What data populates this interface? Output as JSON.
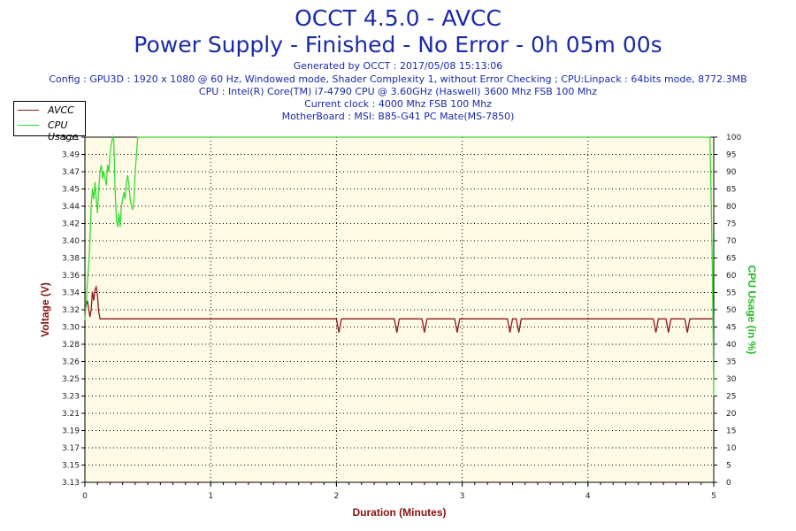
{
  "header": {
    "title": "OCCT 4.5.0 - AVCC",
    "subtitle": "Power Supply - Finished - No Error - 0h 05m 00s",
    "info_lines": [
      "Generated by OCCT : 2017/05/08 15:13:06",
      "Config : GPU3D : 1920 x 1080 @ 60 Hz, Windowed mode, Shader Complexity 1, without Error Checking ; CPU:Linpack : 64bits mode, 8772.3MB",
      "CPU : Intel(R) Core(TM) i7-4790 CPU @ 3.60GHz (Haswell) 3600 Mhz FSB 100 Mhz",
      "Current clock : 4000 Mhz FSB 100 Mhz",
      "MotherBoard : MSI: B85-G41 PC Mate(MS-7850)"
    ]
  },
  "legend": {
    "items": [
      {
        "label": "AVCC",
        "color": "#8b1a1a"
      },
      {
        "label": "CPU Usage",
        "color": "#33dd33"
      }
    ]
  },
  "colors": {
    "plot_bg": "#fffbe6",
    "grid": "#000000",
    "avcc": "#8b1a1a",
    "cpu": "#33dd33"
  },
  "chart_data": {
    "type": "line",
    "title": "OCCT 4.5.0 - AVCC",
    "xlabel": "Duration (Minutes)",
    "ylabel": "Voltage (V)",
    "y2label": "CPU Usage (in %)",
    "xlim": [
      0,
      5
    ],
    "ylim": [
      3.13,
      3.51
    ],
    "y2lim": [
      0,
      100
    ],
    "x_ticks": [
      "0",
      "1",
      "2",
      "3",
      "4",
      "5"
    ],
    "y_ticks": [
      "3.13",
      "3.15",
      "3.17",
      "3.19",
      "3.21",
      "3.23",
      "3.25",
      "3.26",
      "3.28",
      "3.30",
      "3.32",
      "3.34",
      "3.36",
      "3.38",
      "3.40",
      "3.42",
      "3.44",
      "3.45",
      "3.47",
      "3.49",
      "3.51"
    ],
    "y2_ticks": [
      "0",
      "5",
      "10",
      "15",
      "20",
      "25",
      "30",
      "35",
      "40",
      "45",
      "50",
      "55",
      "60",
      "65",
      "70",
      "75",
      "80",
      "85",
      "90",
      "95",
      "100"
    ],
    "grid": true,
    "legend_position": "top-left",
    "series": [
      {
        "name": "AVCC",
        "axis": "left",
        "points": [
          [
            0.0,
            3.32
          ],
          [
            0.02,
            3.33
          ],
          [
            0.04,
            3.312
          ],
          [
            0.05,
            3.32
          ],
          [
            0.06,
            3.34
          ],
          [
            0.07,
            3.33
          ],
          [
            0.08,
            3.342
          ],
          [
            0.09,
            3.345
          ],
          [
            0.1,
            3.336
          ],
          [
            0.11,
            3.318
          ],
          [
            0.12,
            3.31
          ],
          [
            2.0,
            3.31
          ],
          [
            2.02,
            3.295
          ],
          [
            2.04,
            3.31
          ],
          [
            2.46,
            3.31
          ],
          [
            2.48,
            3.295
          ],
          [
            2.5,
            3.31
          ],
          [
            2.68,
            3.31
          ],
          [
            2.7,
            3.295
          ],
          [
            2.72,
            3.31
          ],
          [
            2.94,
            3.31
          ],
          [
            2.96,
            3.295
          ],
          [
            2.98,
            3.31
          ],
          [
            3.36,
            3.31
          ],
          [
            3.38,
            3.295
          ],
          [
            3.4,
            3.31
          ],
          [
            3.43,
            3.31
          ],
          [
            3.45,
            3.295
          ],
          [
            3.47,
            3.31
          ],
          [
            4.52,
            3.31
          ],
          [
            4.54,
            3.295
          ],
          [
            4.56,
            3.31
          ],
          [
            4.62,
            3.31
          ],
          [
            4.64,
            3.295
          ],
          [
            4.66,
            3.31
          ],
          [
            4.77,
            3.31
          ],
          [
            4.79,
            3.295
          ],
          [
            4.81,
            3.31
          ],
          [
            5.0,
            3.31
          ]
        ]
      },
      {
        "name": "CPU Usage",
        "axis": "right",
        "points": [
          [
            0.0,
            47
          ],
          [
            0.01,
            52
          ],
          [
            0.02,
            58
          ],
          [
            0.03,
            63
          ],
          [
            0.04,
            70
          ],
          [
            0.05,
            80
          ],
          [
            0.06,
            85
          ],
          [
            0.07,
            82
          ],
          [
            0.08,
            87
          ],
          [
            0.09,
            82
          ],
          [
            0.1,
            78
          ],
          [
            0.11,
            85
          ],
          [
            0.12,
            90
          ],
          [
            0.13,
            92
          ],
          [
            0.14,
            88
          ],
          [
            0.15,
            90
          ],
          [
            0.16,
            88
          ],
          [
            0.17,
            86
          ],
          [
            0.18,
            92
          ],
          [
            0.19,
            90
          ],
          [
            0.2,
            95
          ],
          [
            0.21,
            98
          ],
          [
            0.22,
            100
          ],
          [
            0.23,
            99
          ],
          [
            0.24,
            85
          ],
          [
            0.25,
            76
          ],
          [
            0.26,
            74
          ],
          [
            0.27,
            78
          ],
          [
            0.28,
            74
          ],
          [
            0.29,
            80
          ],
          [
            0.3,
            82
          ],
          [
            0.31,
            84
          ],
          [
            0.32,
            82
          ],
          [
            0.33,
            87
          ],
          [
            0.34,
            89
          ],
          [
            0.35,
            86
          ],
          [
            0.36,
            82
          ],
          [
            0.37,
            80
          ],
          [
            0.38,
            79
          ],
          [
            0.39,
            82
          ],
          [
            0.4,
            90
          ],
          [
            0.41,
            95
          ],
          [
            0.42,
            100
          ],
          [
            4.97,
            100
          ],
          [
            4.98,
            80
          ],
          [
            4.99,
            60
          ],
          [
            5.0,
            25
          ]
        ]
      }
    ]
  }
}
